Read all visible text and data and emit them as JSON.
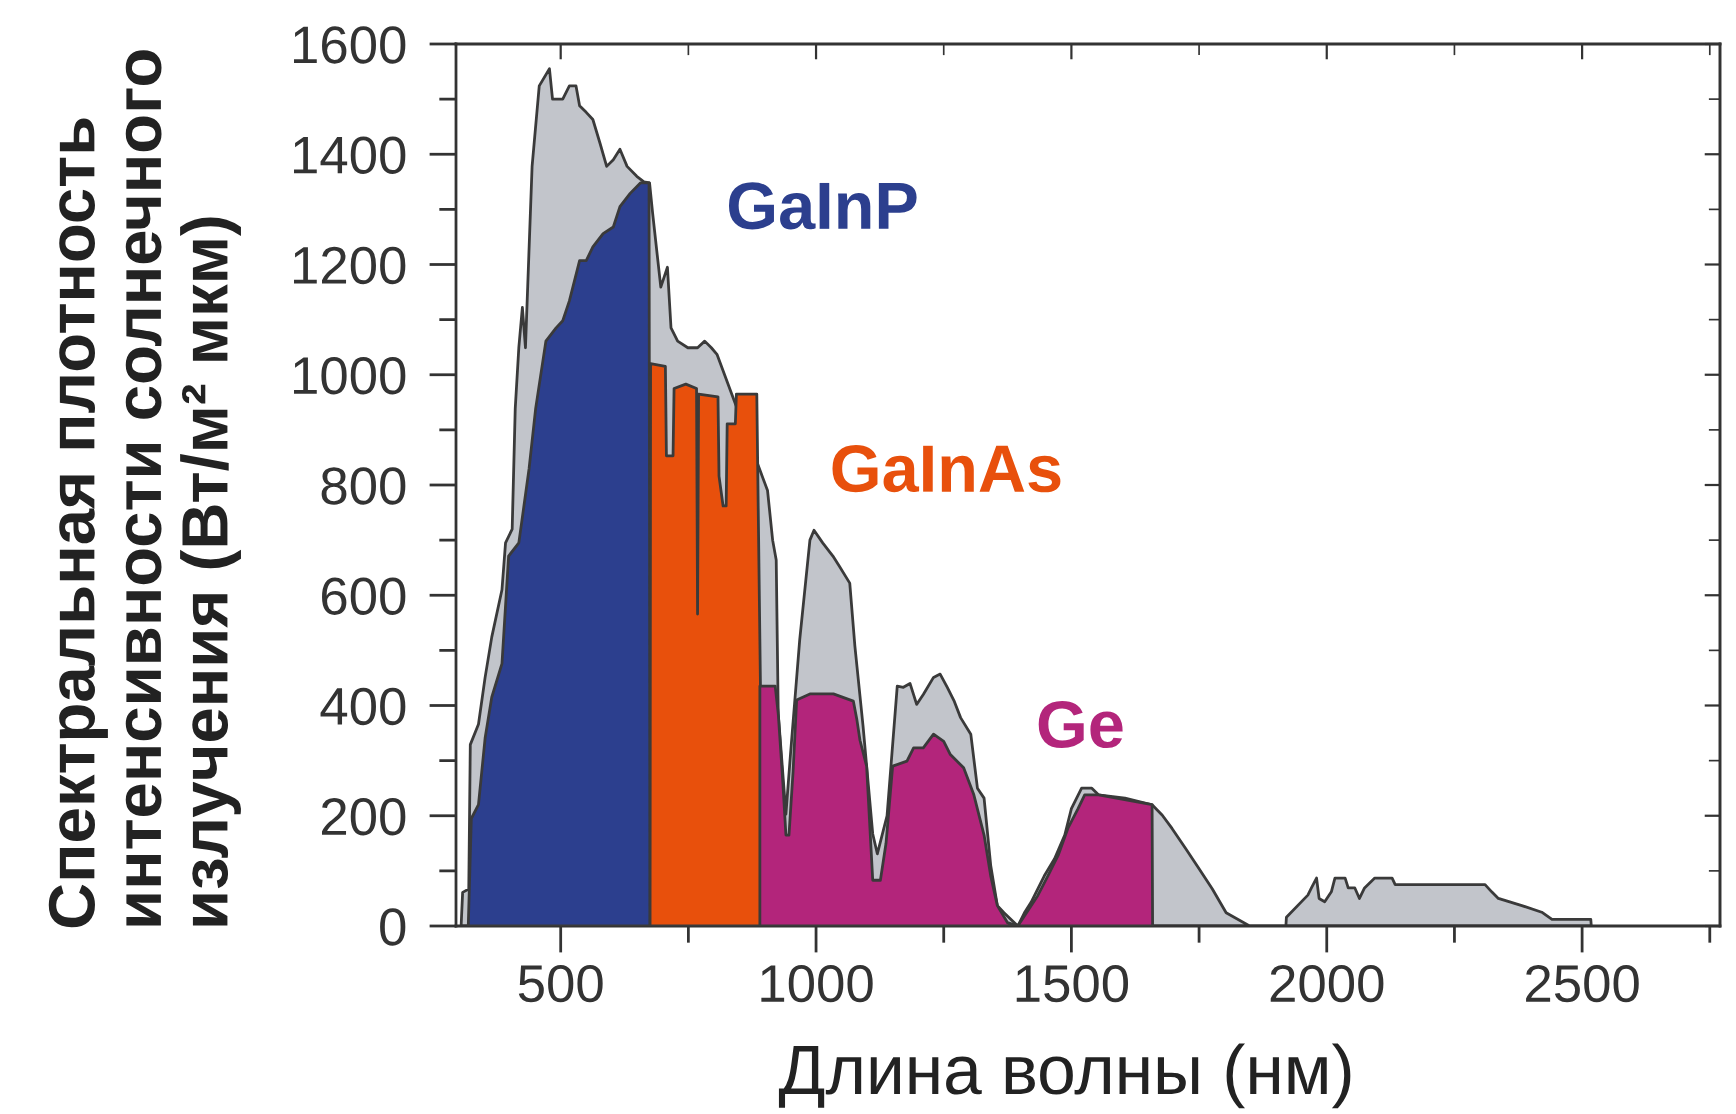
{
  "chart_data": {
    "type": "area",
    "xlabel": "Длина волны (нм)",
    "ylabel": "Спектральная плотность\nинтенсивности солнечного\nизлучения (Вт/м² мкм)",
    "xlim": [
      295,
      2770
    ],
    "xticks": [
      500,
      {
        "value": 750,
        "label": null
      },
      1000,
      {
        "value": 1250,
        "label": null
      },
      1500,
      {
        "value": 1750,
        "label": null
      },
      2000,
      {
        "value": 2250,
        "label": null
      },
      2500,
      {
        "value": 2750,
        "label": null
      }
    ],
    "ylim": [
      0,
      1600
    ],
    "yticks": [
      0,
      {
        "value": 100,
        "label": null
      },
      200,
      {
        "value": 300,
        "label": null
      },
      400,
      {
        "value": 500,
        "label": null
      },
      600,
      {
        "value": 700,
        "label": null
      },
      800,
      {
        "value": 900,
        "label": null
      },
      1000,
      {
        "value": 1100,
        "label": null
      },
      1200,
      {
        "value": 1300,
        "label": null
      },
      1400,
      {
        "value": 1500,
        "label": null
      },
      1600
    ],
    "series": [
      {
        "color": "#c2c5cb",
        "x": [
          305,
          308,
          320,
          323,
          339,
          352,
          365,
          385,
          392,
          405,
          411,
          418,
          425,
          431,
          444,
          458,
          478,
          484,
          504,
          517,
          530,
          537,
          550,
          563,
          577,
          590,
          603,
          616,
          630,
          649,
          663,
          674,
          680,
          696,
          709,
          716,
          729,
          749,
          768,
          782,
          795,
          806,
          860,
          905,
          915,
          922,
          926,
          941,
          950,
          968,
          988,
          996,
          1013,
          1033,
          1046,
          1066,
          1076,
          1092,
          1111,
          1120,
          1139,
          1159,
          1171,
          1184,
          1197,
          1210,
          1230,
          1243,
          1257,
          1270,
          1283,
          1303,
          1316,
          1329,
          1342,
          1355,
          1368,
          1395,
          1408,
          1421,
          1434,
          1447,
          1467,
          1487,
          1500,
          1520,
          1540,
          1553,
          1605,
          1658,
          1678,
          1697,
          1724,
          1750,
          1776,
          1803,
          1849,
          1920,
          1921,
          1963,
          1970,
          1980,
          1985,
          1996,
          2009,
          2016,
          2036,
          2042,
          2055,
          2064,
          2074,
          2094,
          2128,
          2134,
          2310,
          2323,
          2336,
          2382,
          2421,
          2441,
          2517,
          2518
        ],
        "values": [
          0,
          61,
          67,
          329,
          366,
          451,
          524,
          610,
          695,
          720,
          939,
          1049,
          1122,
          1049,
          1378,
          1524,
          1555,
          1500,
          1500,
          1524,
          1524,
          1488,
          1476,
          1463,
          1420,
          1378,
          1390,
          1409,
          1378,
          1360,
          1350,
          1348,
          1293,
          1159,
          1195,
          1085,
          1061,
          1049,
          1049,
          1061,
          1049,
          1037,
          null,
          790,
          700,
          664,
          385,
          203,
          312,
          519,
          700,
          718,
          695,
          671,
          652,
          622,
          508,
          363,
          167,
          131,
          200,
          435,
          433,
          440,
          402,
          420,
          451,
          457,
          433,
          409,
          378,
          348,
          250,
          232,
          110,
          37,
          24,
          0,
          24,
          43,
          67,
          91,
          122,
          165,
          213,
          250,
          250,
          238,
          232,
          220,
          201,
          177,
          140,
          104,
          67,
          24,
          0,
          0,
          16,
          56,
          69,
          87,
          50,
          44,
          62,
          87,
          87,
          69,
          69,
          50,
          69,
          87,
          87,
          75,
          75,
          62,
          50,
          37,
          25,
          12,
          12,
          0
        ]
      },
      {
        "name": "GaInP",
        "color": "#2c3f8e",
        "x": [
          319,
          325,
          339,
          352,
          365,
          385,
          398,
          418,
          438,
          451,
          471,
          491,
          504,
          517,
          537,
          550,
          563,
          583,
          603,
          616,
          636,
          656,
          673,
          675
        ],
        "values": [
          0,
          195,
          220,
          341,
          415,
          476,
          671,
          695,
          829,
          939,
          1061,
          1085,
          1098,
          1134,
          1207,
          1207,
          1232,
          1256,
          1268,
          1305,
          1329,
          1348,
          1348,
          0
        ]
      },
      {
        "name": "GaInAs",
        "color": "#e8500c",
        "x": [
          675,
          676,
          705,
          707,
          720,
          722,
          745,
          766,
          768,
          770,
          808,
          810,
          818,
          824,
          826,
          842,
          844,
          884,
          897
        ],
        "values": [
          0,
          1020,
          1015,
          853,
          853,
          975,
          983,
          975,
          566,
          965,
          960,
          816,
          762,
          762,
          911,
          911,
          965,
          965,
          0
        ]
      },
      {
        "name": "Ge",
        "color": "#b3257b",
        "x": [
          890,
          890,
          920,
          926,
          935,
          941,
          947,
          955,
          962,
          988,
          1034,
          1073,
          1080,
          1086,
          1099,
          1111,
          1126,
          1137,
          1150,
          1178,
          1191,
          1210,
          1230,
          1250,
          1263,
          1289,
          1309,
          1329,
          1342,
          1355,
          1375,
          1395,
          1408,
          1434,
          1454,
          1474,
          1493,
          1513,
          1526,
          1553,
          1658,
          1659
        ],
        "values": [
          0,
          435,
          435,
          385,
          260,
          165,
          165,
          280,
          410,
          421,
          421,
          408,
          374,
          337,
          290,
          83,
          83,
          150,
          290,
          299,
          323,
          323,
          348,
          335,
          311,
          287,
          238,
          165,
          91,
          37,
          6,
          0,
          18,
          55,
          91,
          128,
          177,
          213,
          238,
          238,
          220,
          0
        ]
      }
    ]
  }
}
